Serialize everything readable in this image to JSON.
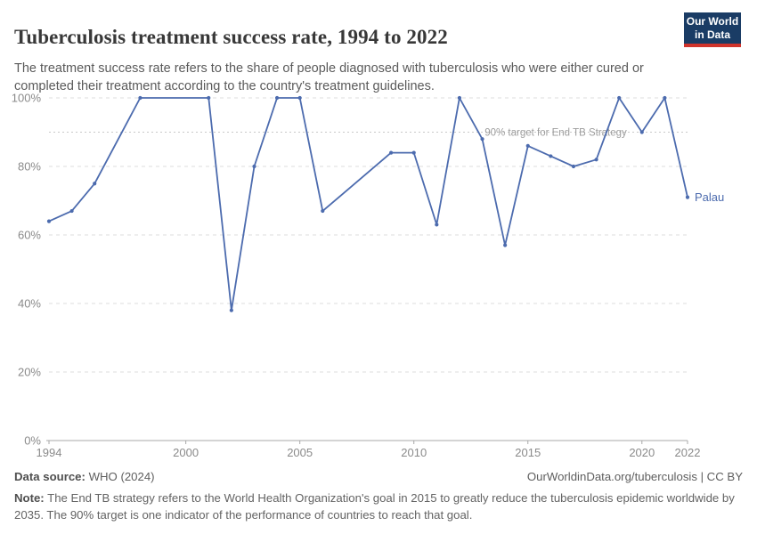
{
  "header": {
    "title": "Tuberculosis treatment success rate, 1994 to 2022",
    "subtitle": "The treatment success rate refers to the share of people diagnosed with tuberculosis who were either cured or completed their treatment according to the country's treatment guidelines.",
    "logo": {
      "line1": "Our World",
      "line2": "in Data"
    }
  },
  "chart_data": {
    "type": "line",
    "title": "Tuberculosis treatment success rate, 1994 to 2022",
    "xlabel": "",
    "ylabel": "",
    "xlim": [
      1994,
      2022
    ],
    "ylim": [
      0,
      100
    ],
    "grid": "horizontal-dashed",
    "legend_position": "end-of-line-label",
    "x": [
      1994,
      1995,
      1996,
      1998,
      2001,
      2002,
      2003,
      2004,
      2005,
      2006,
      2009,
      2010,
      2011,
      2012,
      2013,
      2014,
      2015,
      2016,
      2017,
      2018,
      2019,
      2020,
      2021,
      2022
    ],
    "series": [
      {
        "name": "Palau",
        "color": "#4c6bae",
        "values": [
          64,
          67,
          75,
          100,
          100,
          38,
          80,
          100,
          100,
          67,
          84,
          84,
          63,
          100,
          88,
          57,
          86,
          83,
          80,
          82,
          100,
          90,
          100,
          71
        ]
      }
    ],
    "x_ticks": [
      1994,
      2000,
      2005,
      2010,
      2015,
      2020,
      2022
    ],
    "y_ticks": [
      0,
      20,
      40,
      60,
      80,
      100
    ],
    "y_tick_suffix": "%",
    "annotation": {
      "value": 90,
      "label": "90% target for End TB Strategy"
    },
    "entity_label": "Palau"
  },
  "footer": {
    "source_label": "Data source:",
    "source_value": "WHO (2024)",
    "credit": "OurWorldinData.org/tuberculosis | CC BY",
    "note_label": "Note:",
    "note_text": "The End TB strategy refers to the World Health Organization's goal in 2015 to greatly reduce the tuberculosis epidemic worldwide by 2035. The 90% target is one indicator of the performance of countries to reach that goal."
  },
  "colors": {
    "line": "#4c6bae",
    "grid": "#dcdcdc",
    "axis": "#a8a8a8",
    "tick_label": "#8a8a8a",
    "target_line": "#c9c9c9",
    "target_text": "#9d9d9d",
    "logo_bg": "#1a3c65",
    "logo_bar": "#d0342c"
  }
}
